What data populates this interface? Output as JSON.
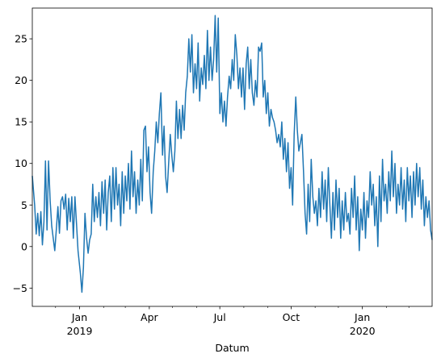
{
  "chart_data": {
    "type": "line",
    "xlabel": "Datum",
    "ylabel": "",
    "title": "",
    "x_range": [
      "2018-11-01",
      "2020-03-31"
    ],
    "ylim": [
      -7.2,
      28.7
    ],
    "y_ticks": [
      -5,
      0,
      5,
      10,
      15,
      20,
      25
    ],
    "x_ticks": [
      {
        "date": "2019-01-01",
        "label": "Jan",
        "year_label": "2019"
      },
      {
        "date": "2019-04-01",
        "label": "Apr",
        "year_label": ""
      },
      {
        "date": "2019-07-01",
        "label": "Jul",
        "year_label": ""
      },
      {
        "date": "2019-10-01",
        "label": "Oct",
        "year_label": ""
      },
      {
        "date": "2020-01-01",
        "label": "Jan",
        "year_label": "2020"
      }
    ],
    "x_minor_ticks": [
      "2018-12-01",
      "2019-02-01",
      "2019-03-01",
      "2019-05-01",
      "2019-06-01",
      "2019-08-01",
      "2019-09-01",
      "2019-11-01",
      "2019-12-01",
      "2020-02-01",
      "2020-03-01"
    ],
    "grid": false,
    "line_color": "#1f77b4",
    "series": [
      {
        "values": [
          [
            "2018-11-01",
            8.5
          ],
          [
            "2018-11-04",
            5.0
          ],
          [
            "2018-11-06",
            1.5
          ],
          [
            "2018-11-08",
            4.0
          ],
          [
            "2018-11-10",
            1.3
          ],
          [
            "2018-11-12",
            4.2
          ],
          [
            "2018-11-14",
            0.2
          ],
          [
            "2018-11-16",
            3.0
          ],
          [
            "2018-11-18",
            10.3
          ],
          [
            "2018-11-20",
            2.0
          ],
          [
            "2018-11-22",
            10.3
          ],
          [
            "2018-11-24",
            5.5
          ],
          [
            "2018-11-26",
            2.5
          ],
          [
            "2018-11-28",
            1.0
          ],
          [
            "2018-11-30",
            -0.5
          ],
          [
            "2018-12-02",
            2.0
          ],
          [
            "2018-12-04",
            4.8
          ],
          [
            "2018-12-06",
            1.6
          ],
          [
            "2018-12-08",
            5.5
          ],
          [
            "2018-12-10",
            6.0
          ],
          [
            "2018-12-12",
            4.5
          ],
          [
            "2018-12-14",
            6.3
          ],
          [
            "2018-12-16",
            2.0
          ],
          [
            "2018-12-18",
            5.8
          ],
          [
            "2018-12-20",
            3.0
          ],
          [
            "2018-12-22",
            6.0
          ],
          [
            "2018-12-24",
            1.0
          ],
          [
            "2018-12-26",
            6.0
          ],
          [
            "2018-12-28",
            2.8
          ],
          [
            "2018-12-30",
            -0.5
          ],
          [
            "2019-01-02",
            -3.2
          ],
          [
            "2019-01-04",
            -5.5
          ],
          [
            "2019-01-06",
            -2.5
          ],
          [
            "2019-01-08",
            4.0
          ],
          [
            "2019-01-10",
            1.0
          ],
          [
            "2019-01-12",
            -0.8
          ],
          [
            "2019-01-14",
            0.8
          ],
          [
            "2019-01-16",
            1.5
          ],
          [
            "2019-01-18",
            7.5
          ],
          [
            "2019-01-20",
            3.0
          ],
          [
            "2019-01-22",
            6.0
          ],
          [
            "2019-01-24",
            3.5
          ],
          [
            "2019-01-26",
            6.5
          ],
          [
            "2019-01-28",
            2.5
          ],
          [
            "2019-01-30",
            7.8
          ],
          [
            "2019-02-01",
            4.0
          ],
          [
            "2019-02-03",
            8.0
          ],
          [
            "2019-02-05",
            2.0
          ],
          [
            "2019-02-07",
            6.5
          ],
          [
            "2019-02-09",
            8.5
          ],
          [
            "2019-02-11",
            3.0
          ],
          [
            "2019-02-13",
            9.5
          ],
          [
            "2019-02-15",
            4.5
          ],
          [
            "2019-02-17",
            9.5
          ],
          [
            "2019-02-19",
            5.0
          ],
          [
            "2019-02-21",
            7.5
          ],
          [
            "2019-02-23",
            2.5
          ],
          [
            "2019-02-25",
            9.0
          ],
          [
            "2019-02-27",
            4.0
          ],
          [
            "2019-03-01",
            8.5
          ],
          [
            "2019-03-03",
            5.5
          ],
          [
            "2019-03-05",
            10.0
          ],
          [
            "2019-03-07",
            4.5
          ],
          [
            "2019-03-09",
            11.5
          ],
          [
            "2019-03-11",
            6.0
          ],
          [
            "2019-03-13",
            9.0
          ],
          [
            "2019-03-15",
            4.0
          ],
          [
            "2019-03-17",
            8.0
          ],
          [
            "2019-03-19",
            5.0
          ],
          [
            "2019-03-21",
            10.5
          ],
          [
            "2019-03-23",
            5.5
          ],
          [
            "2019-03-25",
            14.0
          ],
          [
            "2019-03-27",
            14.5
          ],
          [
            "2019-03-29",
            9.0
          ],
          [
            "2019-03-31",
            12.0
          ],
          [
            "2019-04-02",
            6.5
          ],
          [
            "2019-04-04",
            4.0
          ],
          [
            "2019-04-06",
            9.0
          ],
          [
            "2019-04-08",
            11.5
          ],
          [
            "2019-04-10",
            15.0
          ],
          [
            "2019-04-12",
            12.5
          ],
          [
            "2019-04-14",
            16.0
          ],
          [
            "2019-04-16",
            18.5
          ],
          [
            "2019-04-18",
            11.0
          ],
          [
            "2019-04-20",
            14.5
          ],
          [
            "2019-04-22",
            8.5
          ],
          [
            "2019-04-24",
            6.5
          ],
          [
            "2019-04-26",
            10.0
          ],
          [
            "2019-04-28",
            13.5
          ],
          [
            "2019-04-30",
            11.0
          ],
          [
            "2019-05-02",
            9.0
          ],
          [
            "2019-05-04",
            11.5
          ],
          [
            "2019-05-06",
            17.5
          ],
          [
            "2019-05-08",
            13.0
          ],
          [
            "2019-05-10",
            16.5
          ],
          [
            "2019-05-12",
            13.0
          ],
          [
            "2019-05-14",
            17.0
          ],
          [
            "2019-05-16",
            14.0
          ],
          [
            "2019-05-18",
            18.5
          ],
          [
            "2019-05-20",
            20.5
          ],
          [
            "2019-05-22",
            25.0
          ],
          [
            "2019-05-24",
            21.0
          ],
          [
            "2019-05-26",
            25.5
          ],
          [
            "2019-05-28",
            18.5
          ],
          [
            "2019-05-30",
            22.0
          ],
          [
            "2019-06-01",
            19.0
          ],
          [
            "2019-06-03",
            24.5
          ],
          [
            "2019-06-05",
            17.5
          ],
          [
            "2019-06-07",
            21.5
          ],
          [
            "2019-06-09",
            19.5
          ],
          [
            "2019-06-11",
            23.0
          ],
          [
            "2019-06-13",
            19.0
          ],
          [
            "2019-06-15",
            26.0
          ],
          [
            "2019-06-17",
            20.0
          ],
          [
            "2019-06-19",
            24.0
          ],
          [
            "2019-06-21",
            20.0
          ],
          [
            "2019-06-23",
            22.5
          ],
          [
            "2019-06-25",
            27.8
          ],
          [
            "2019-06-27",
            21.0
          ],
          [
            "2019-06-29",
            27.5
          ],
          [
            "2019-07-01",
            16.0
          ],
          [
            "2019-07-03",
            18.5
          ],
          [
            "2019-07-05",
            15.0
          ],
          [
            "2019-07-07",
            17.5
          ],
          [
            "2019-07-09",
            14.5
          ],
          [
            "2019-07-11",
            18.0
          ],
          [
            "2019-07-13",
            20.5
          ],
          [
            "2019-07-15",
            19.0
          ],
          [
            "2019-07-17",
            22.5
          ],
          [
            "2019-07-19",
            20.0
          ],
          [
            "2019-07-21",
            25.5
          ],
          [
            "2019-07-23",
            23.0
          ],
          [
            "2019-07-25",
            19.0
          ],
          [
            "2019-07-27",
            21.5
          ],
          [
            "2019-07-29",
            18.0
          ],
          [
            "2019-07-31",
            21.5
          ],
          [
            "2019-08-02",
            16.5
          ],
          [
            "2019-08-04",
            22.0
          ],
          [
            "2019-08-06",
            24.0
          ],
          [
            "2019-08-08",
            19.0
          ],
          [
            "2019-08-10",
            22.5
          ],
          [
            "2019-08-12",
            18.5
          ],
          [
            "2019-08-14",
            17.0
          ],
          [
            "2019-08-16",
            20.0
          ],
          [
            "2019-08-18",
            18.0
          ],
          [
            "2019-08-20",
            24.0
          ],
          [
            "2019-08-22",
            23.5
          ],
          [
            "2019-08-24",
            24.5
          ],
          [
            "2019-08-26",
            18.0
          ],
          [
            "2019-08-28",
            20.0
          ],
          [
            "2019-08-30",
            16.0
          ],
          [
            "2019-09-01",
            18.5
          ],
          [
            "2019-09-03",
            14.5
          ],
          [
            "2019-09-05",
            16.5
          ],
          [
            "2019-09-07",
            15.5
          ],
          [
            "2019-09-09",
            15.0
          ],
          [
            "2019-09-11",
            14.0
          ],
          [
            "2019-09-13",
            12.5
          ],
          [
            "2019-09-15",
            13.5
          ],
          [
            "2019-09-17",
            12.0
          ],
          [
            "2019-09-19",
            15.0
          ],
          [
            "2019-09-21",
            10.5
          ],
          [
            "2019-09-23",
            13.0
          ],
          [
            "2019-09-25",
            9.0
          ],
          [
            "2019-09-27",
            12.5
          ],
          [
            "2019-09-29",
            7.0
          ],
          [
            "2019-10-01",
            9.5
          ],
          [
            "2019-10-03",
            5.0
          ],
          [
            "2019-10-05",
            13.5
          ],
          [
            "2019-10-07",
            18.0
          ],
          [
            "2019-10-09",
            14.0
          ],
          [
            "2019-10-11",
            11.5
          ],
          [
            "2019-10-13",
            12.5
          ],
          [
            "2019-10-15",
            13.5
          ],
          [
            "2019-10-17",
            9.0
          ],
          [
            "2019-10-19",
            4.0
          ],
          [
            "2019-10-21",
            1.5
          ],
          [
            "2019-10-23",
            7.5
          ],
          [
            "2019-10-25",
            3.0
          ],
          [
            "2019-10-27",
            10.5
          ],
          [
            "2019-10-29",
            6.0
          ],
          [
            "2019-10-31",
            4.0
          ],
          [
            "2019-11-02",
            5.5
          ],
          [
            "2019-11-04",
            2.5
          ],
          [
            "2019-11-06",
            7.0
          ],
          [
            "2019-11-08",
            3.5
          ],
          [
            "2019-11-10",
            9.0
          ],
          [
            "2019-11-12",
            4.5
          ],
          [
            "2019-11-14",
            8.0
          ],
          [
            "2019-11-16",
            3.0
          ],
          [
            "2019-11-18",
            9.5
          ],
          [
            "2019-11-20",
            5.0
          ],
          [
            "2019-11-22",
            1.0
          ],
          [
            "2019-11-24",
            6.5
          ],
          [
            "2019-11-26",
            2.0
          ],
          [
            "2019-11-28",
            8.0
          ],
          [
            "2019-11-30",
            3.5
          ],
          [
            "2019-12-02",
            7.0
          ],
          [
            "2019-12-04",
            1.0
          ],
          [
            "2019-12-06",
            5.5
          ],
          [
            "2019-12-08",
            2.0
          ],
          [
            "2019-12-10",
            6.5
          ],
          [
            "2019-12-12",
            3.0
          ],
          [
            "2019-12-14",
            4.0
          ],
          [
            "2019-12-16",
            1.5
          ],
          [
            "2019-12-18",
            7.0
          ],
          [
            "2019-12-20",
            3.5
          ],
          [
            "2019-12-22",
            8.5
          ],
          [
            "2019-12-24",
            2.0
          ],
          [
            "2019-12-26",
            6.0
          ],
          [
            "2019-12-28",
            -0.5
          ],
          [
            "2019-12-30",
            4.5
          ],
          [
            "2020-01-01",
            2.0
          ],
          [
            "2020-01-03",
            6.5
          ],
          [
            "2020-01-05",
            1.0
          ],
          [
            "2020-01-07",
            5.5
          ],
          [
            "2020-01-09",
            3.5
          ],
          [
            "2020-01-11",
            9.0
          ],
          [
            "2020-01-13",
            5.0
          ],
          [
            "2020-01-15",
            7.5
          ],
          [
            "2020-01-17",
            2.5
          ],
          [
            "2020-01-19",
            6.0
          ],
          [
            "2020-01-21",
            0.0
          ],
          [
            "2020-01-23",
            8.5
          ],
          [
            "2020-01-25",
            3.0
          ],
          [
            "2020-01-27",
            10.5
          ],
          [
            "2020-01-29",
            5.5
          ],
          [
            "2020-01-31",
            7.5
          ],
          [
            "2020-02-02",
            4.0
          ],
          [
            "2020-02-04",
            9.0
          ],
          [
            "2020-02-06",
            5.5
          ],
          [
            "2020-02-08",
            11.5
          ],
          [
            "2020-02-10",
            6.0
          ],
          [
            "2020-02-12",
            10.0
          ],
          [
            "2020-02-14",
            4.0
          ],
          [
            "2020-02-16",
            7.5
          ],
          [
            "2020-02-18",
            5.0
          ],
          [
            "2020-02-20",
            9.5
          ],
          [
            "2020-02-22",
            4.5
          ],
          [
            "2020-02-24",
            8.0
          ],
          [
            "2020-02-26",
            3.0
          ],
          [
            "2020-02-28",
            9.5
          ],
          [
            "2020-03-01",
            5.5
          ],
          [
            "2020-03-03",
            8.5
          ],
          [
            "2020-03-05",
            3.5
          ],
          [
            "2020-03-07",
            9.0
          ],
          [
            "2020-03-09",
            5.0
          ],
          [
            "2020-03-11",
            10.0
          ],
          [
            "2020-03-13",
            6.0
          ],
          [
            "2020-03-15",
            9.5
          ],
          [
            "2020-03-17",
            4.5
          ],
          [
            "2020-03-19",
            8.0
          ],
          [
            "2020-03-21",
            2.5
          ],
          [
            "2020-03-23",
            6.0
          ],
          [
            "2020-03-25",
            3.5
          ],
          [
            "2020-03-27",
            5.5
          ],
          [
            "2020-03-29",
            2.0
          ],
          [
            "2020-03-31",
            0.8
          ]
        ]
      }
    ]
  }
}
